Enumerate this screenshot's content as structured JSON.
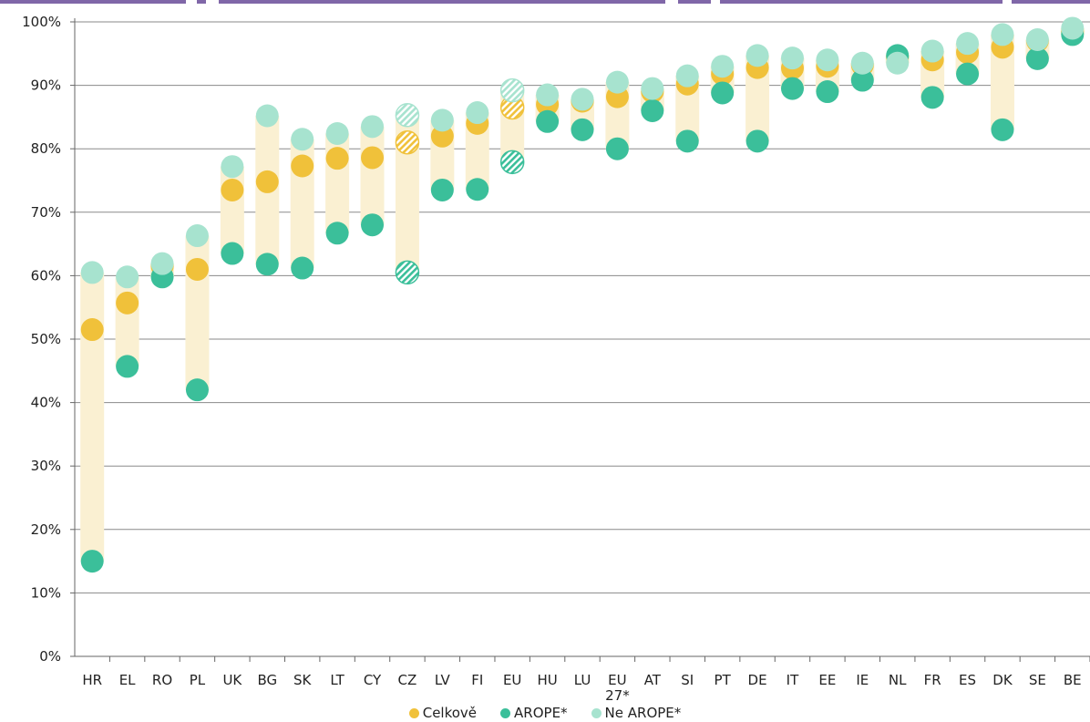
{
  "chart_data": {
    "type": "scatter",
    "categories": [
      "HR",
      "EL",
      "RO",
      "PL",
      "UK",
      "BG",
      "SK",
      "LT",
      "CY",
      "CZ",
      "LV",
      "FI",
      "EU",
      "HU",
      "LU",
      "EU 27*",
      "AT",
      "SI",
      "PT",
      "DE",
      "IT",
      "EE",
      "IE",
      "NL",
      "FR",
      "ES",
      "DK",
      "SE",
      "BE"
    ],
    "series": [
      {
        "name": "Celkově",
        "color": "#F0C13A",
        "values": [
          51.5,
          55.7,
          61.5,
          61,
          73.5,
          74.8,
          77.3,
          78.5,
          78.6,
          81,
          82,
          84,
          86.5,
          87,
          87.5,
          88.2,
          89,
          90.2,
          91.8,
          92.8,
          92.7,
          93,
          93.2,
          94.5,
          94,
          95.2,
          96,
          97,
          98.5
        ]
      },
      {
        "name": "AROPE*",
        "color": "#3BBF9A",
        "values": [
          15,
          45.7,
          59.8,
          42,
          63.5,
          61.8,
          61.2,
          66.7,
          68,
          60.5,
          73.5,
          73.6,
          77.9,
          84.3,
          83,
          80,
          86,
          81.2,
          88.8,
          81.2,
          89.5,
          89,
          90.8,
          94.7,
          88.1,
          91.8,
          83,
          94.2,
          98
        ]
      },
      {
        "name": "Ne AROPE*",
        "color": "#A7E3CF",
        "values": [
          60.5,
          59.8,
          61.9,
          66.3,
          77.2,
          85.2,
          81.5,
          82.4,
          83.5,
          85.3,
          84.5,
          85.7,
          89.2,
          88.5,
          87.8,
          90.5,
          89.5,
          91.5,
          93,
          94.7,
          94.3,
          94,
          93.5,
          93.5,
          95.4,
          96.6,
          98,
          97.2,
          99
        ]
      }
    ],
    "hatched_categories": [
      "CZ",
      "EU"
    ],
    "range_band_color": "#FAF0D2",
    "ylim": [
      0,
      100
    ],
    "yticks": [
      "0%",
      "10%",
      "20%",
      "30%",
      "40%",
      "50%",
      "60%",
      "70%",
      "80%",
      "90%",
      "100%"
    ],
    "grid": true,
    "legend_position": "bottom",
    "title": "",
    "xlabel": "",
    "ylabel": ""
  }
}
